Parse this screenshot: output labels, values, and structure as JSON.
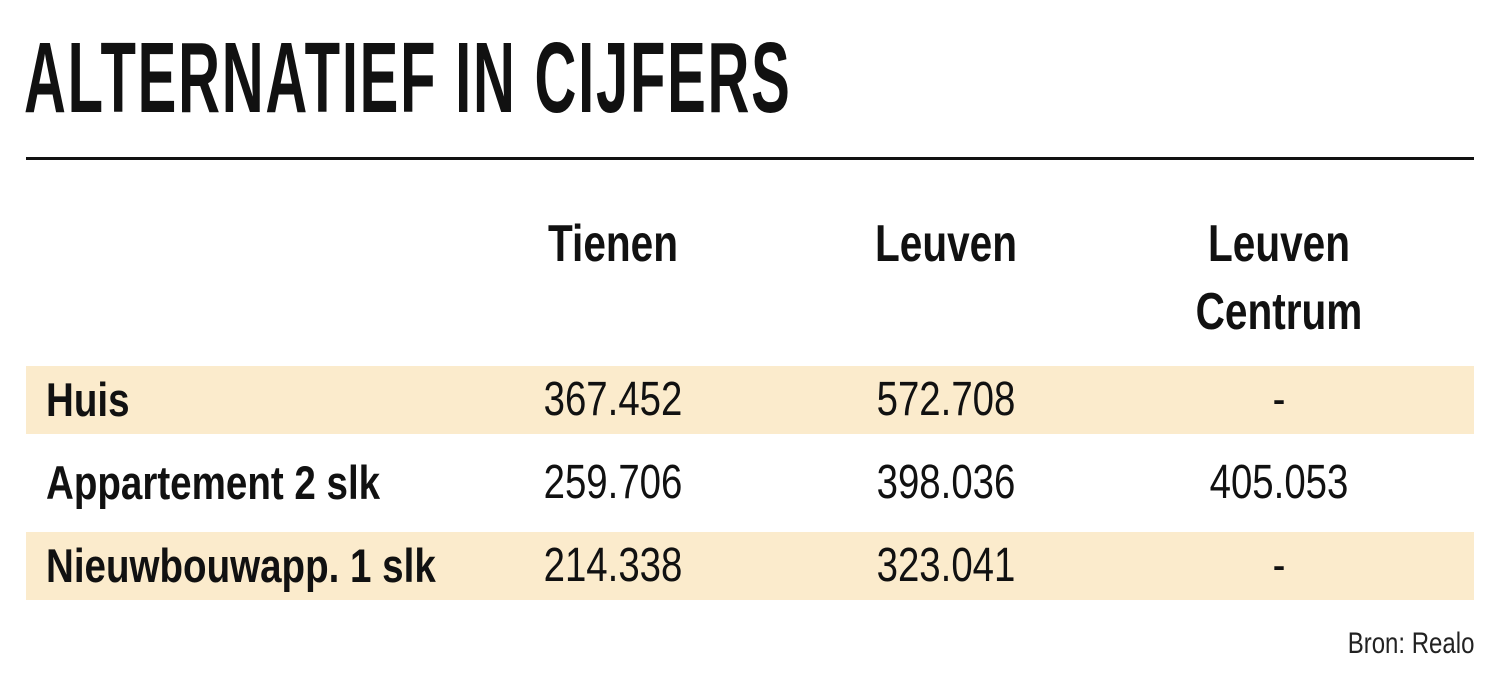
{
  "chart_data": {
    "type": "table",
    "title": "ALTERNATIEF IN CIJFERS",
    "columns": [
      {
        "name": "Tienen"
      },
      {
        "name": "Leuven"
      },
      {
        "name": "Leuven Centrum"
      }
    ],
    "rows": [
      {
        "label": "Huis",
        "values": [
          "367.452",
          "572.708",
          "-"
        ]
      },
      {
        "label": "Appartement 2 slk",
        "values": [
          "259.706",
          "398.036",
          "405.053"
        ]
      },
      {
        "label": "Nieuwbouwapp. 1 slk",
        "values": [
          "214.338",
          "323.041",
          "-"
        ]
      }
    ],
    "source": "Bron: Realo",
    "row_shading": [
      "#fbebcc",
      "#ffffff",
      "#fbebcc"
    ]
  }
}
